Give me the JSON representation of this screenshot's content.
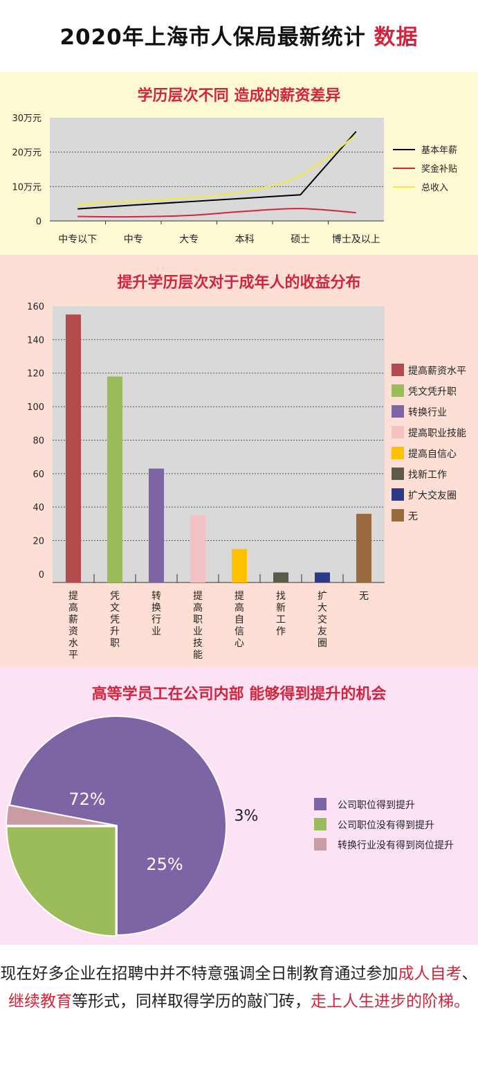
{
  "header": {
    "title_main": "2020年上海市人保局最新统计",
    "title_highlight": "数据"
  },
  "chart_data": [
    {
      "type": "line",
      "title": "学历层次不同 造成的薪资差异",
      "categories": [
        "中专以下",
        "中专",
        "大专",
        "本科",
        "硕士",
        "博士及以上"
      ],
      "yticks": [
        "0",
        "10万元",
        "20万元",
        "30万元"
      ],
      "ylim": [
        0,
        30
      ],
      "grid": true,
      "legend_position": "right",
      "series": [
        {
          "name": "基本年薪",
          "color": "#000000",
          "values": [
            3.5,
            4.6,
            5.6,
            6.6,
            7.6,
            26
          ]
        },
        {
          "name": "奖金补贴",
          "color": "#d2253d",
          "values": [
            1.3,
            1.2,
            1.6,
            2.8,
            3.6,
            2.4
          ]
        },
        {
          "name": "总收入",
          "color": "#f2ea3c",
          "values": [
            4.9,
            5.8,
            6.8,
            8.6,
            13.2,
            25
          ]
        }
      ]
    },
    {
      "type": "bar",
      "title": "提升学历层次对于成年人的收益分布",
      "categories": [
        "提高薪资水平",
        "凭文凭升职",
        "转换行业",
        "提高职业技能",
        "提高自信心",
        "找新工作",
        "扩大交友圈",
        "无"
      ],
      "values": [
        155,
        118,
        63,
        35,
        15,
        1,
        1,
        36
      ],
      "colors": [
        "#b34b4c",
        "#9cbb5a",
        "#7d65a5",
        "#f3c0c3",
        "#ffc000",
        "#5b5b4a",
        "#2d3a87",
        "#9a6a3f"
      ],
      "yticks": [
        "0",
        "20",
        "40",
        "60",
        "80",
        "100",
        "120",
        "140",
        "160"
      ],
      "ylim": [
        -5,
        160
      ],
      "grid": true,
      "legend_position": "right"
    },
    {
      "type": "pie",
      "title": "高等学员工在公司内部 能够得到提升的机会",
      "legend_position": "right",
      "slices": [
        {
          "name": "公司职位得到提升",
          "value": 72,
          "label": "72%",
          "color": "#7d65a5"
        },
        {
          "name": "公司职位没有得到提升",
          "value": 25,
          "label": "25%",
          "color": "#9cbb5a"
        },
        {
          "name": "转换行业没有得到岗位提升",
          "value": 3,
          "label": "3%",
          "color": "#c99ba3"
        }
      ]
    }
  ],
  "footer": {
    "p1": "现在好多企业在招聘中并不特意强调全日制教育通过参加",
    "r1": "成人自考",
    "p2": "、",
    "r2": "继续教育",
    "p3": "等形式，同样取得学历的敲门砖，",
    "r3": "走上人生进步的阶梯。"
  }
}
